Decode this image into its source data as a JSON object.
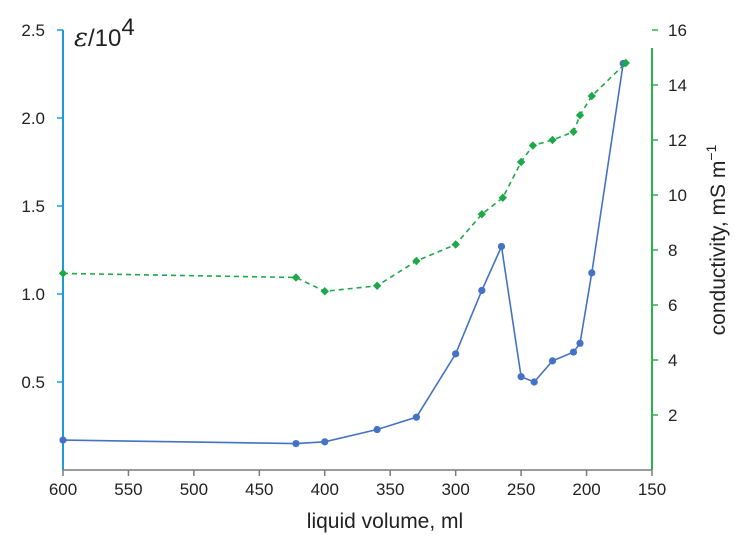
{
  "chart_data": {
    "type": "line",
    "xlabel": "liquid volume, ml",
    "x_reversed": true,
    "xlim": [
      600,
      150
    ],
    "x_ticks": [
      "600",
      "550",
      "500",
      "450",
      "400",
      "350",
      "300",
      "250",
      "200",
      "150"
    ],
    "left_axis": {
      "label_symbol": "ε",
      "label_rest": "/10",
      "label_sup": "4",
      "ylim": [
        0,
        2.5
      ],
      "ticks": [
        "0.5",
        "1.0",
        "1.5",
        "2.0",
        "2.5"
      ],
      "color": "#1a9ad6"
    },
    "right_axis": {
      "label": "conductivity, mS m",
      "label_sup": "−1",
      "ylim": [
        0,
        16
      ],
      "ticks": [
        "2",
        "4",
        "6",
        "8",
        "10",
        "12",
        "14",
        "16"
      ],
      "color": "#2bb24c"
    },
    "series": [
      {
        "axis": "left",
        "style": "solid",
        "marker": "circle",
        "color": "#4472c4",
        "x": [
          600,
          422,
          400,
          360,
          330,
          300,
          280,
          265,
          250,
          240,
          226,
          210,
          205,
          196,
          172
        ],
        "y": [
          0.17,
          0.15,
          0.16,
          0.23,
          0.3,
          0.66,
          1.02,
          1.27,
          0.53,
          0.5,
          0.62,
          0.67,
          0.72,
          1.12,
          2.31
        ]
      },
      {
        "axis": "right",
        "style": "dashed",
        "marker": "diamond",
        "color": "#1fa84a",
        "x": [
          600,
          422,
          400,
          360,
          330,
          300,
          280,
          264,
          250,
          241,
          226,
          210,
          205,
          196,
          170
        ],
        "y": [
          7.15,
          7.0,
          6.5,
          6.7,
          7.6,
          8.2,
          9.3,
          9.9,
          11.2,
          11.8,
          12.0,
          12.3,
          12.9,
          13.6,
          14.8
        ]
      }
    ]
  }
}
